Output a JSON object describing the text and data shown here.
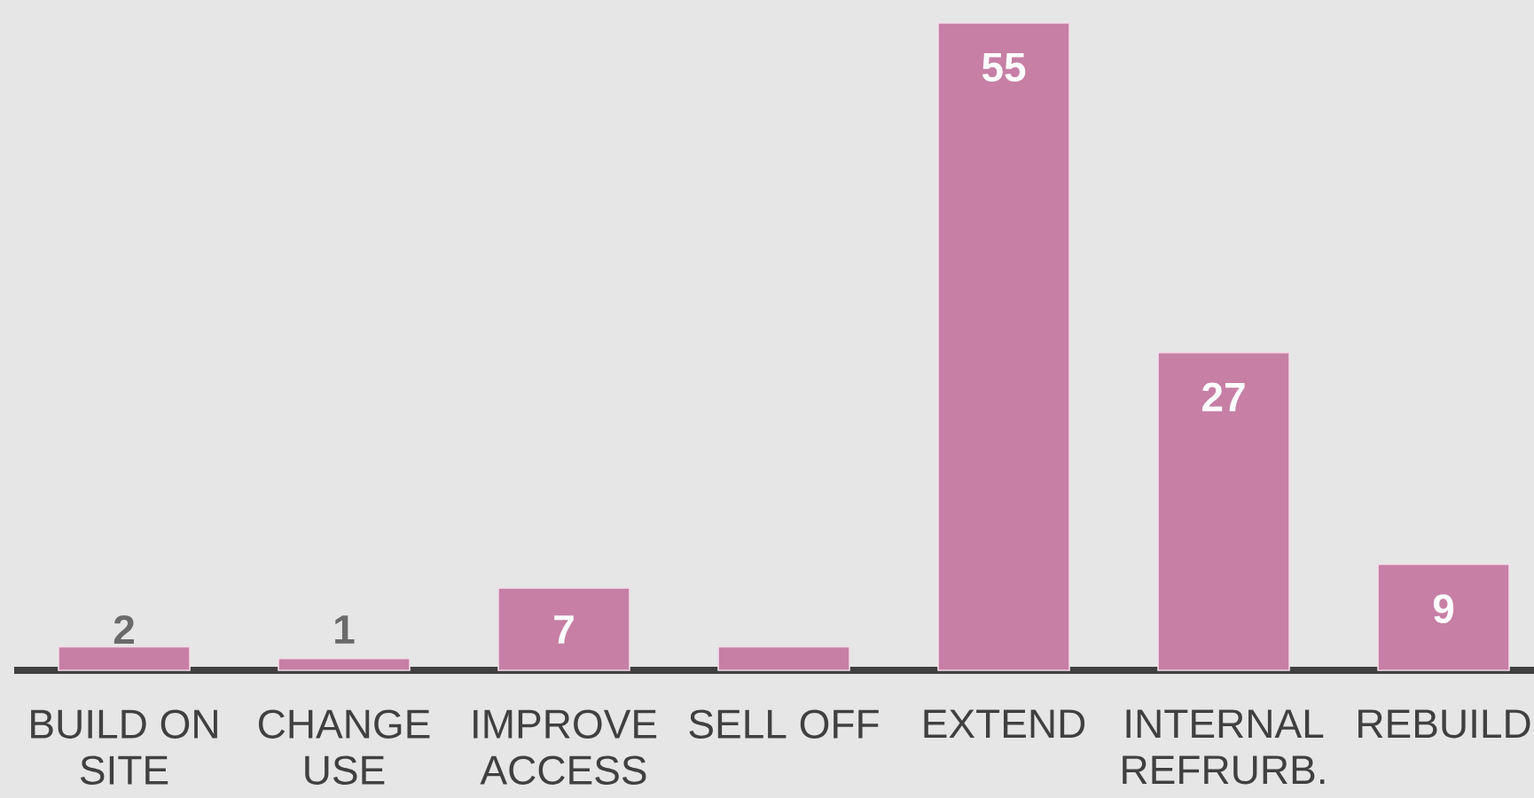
{
  "chart_data": {
    "type": "bar",
    "categories": [
      "BUILD ON SITE",
      "CHANGE USE",
      "IMPROVE ACCESS",
      "SELL OFF",
      "EXTEND",
      "INTERNAL REFRURB.",
      "REBUILD"
    ],
    "values": [
      2,
      1,
      7,
      2,
      55,
      27,
      9
    ],
    "value_labels": [
      "2",
      "1",
      "7",
      null,
      "55",
      "27",
      "9"
    ],
    "color": "#c77fa5"
  }
}
